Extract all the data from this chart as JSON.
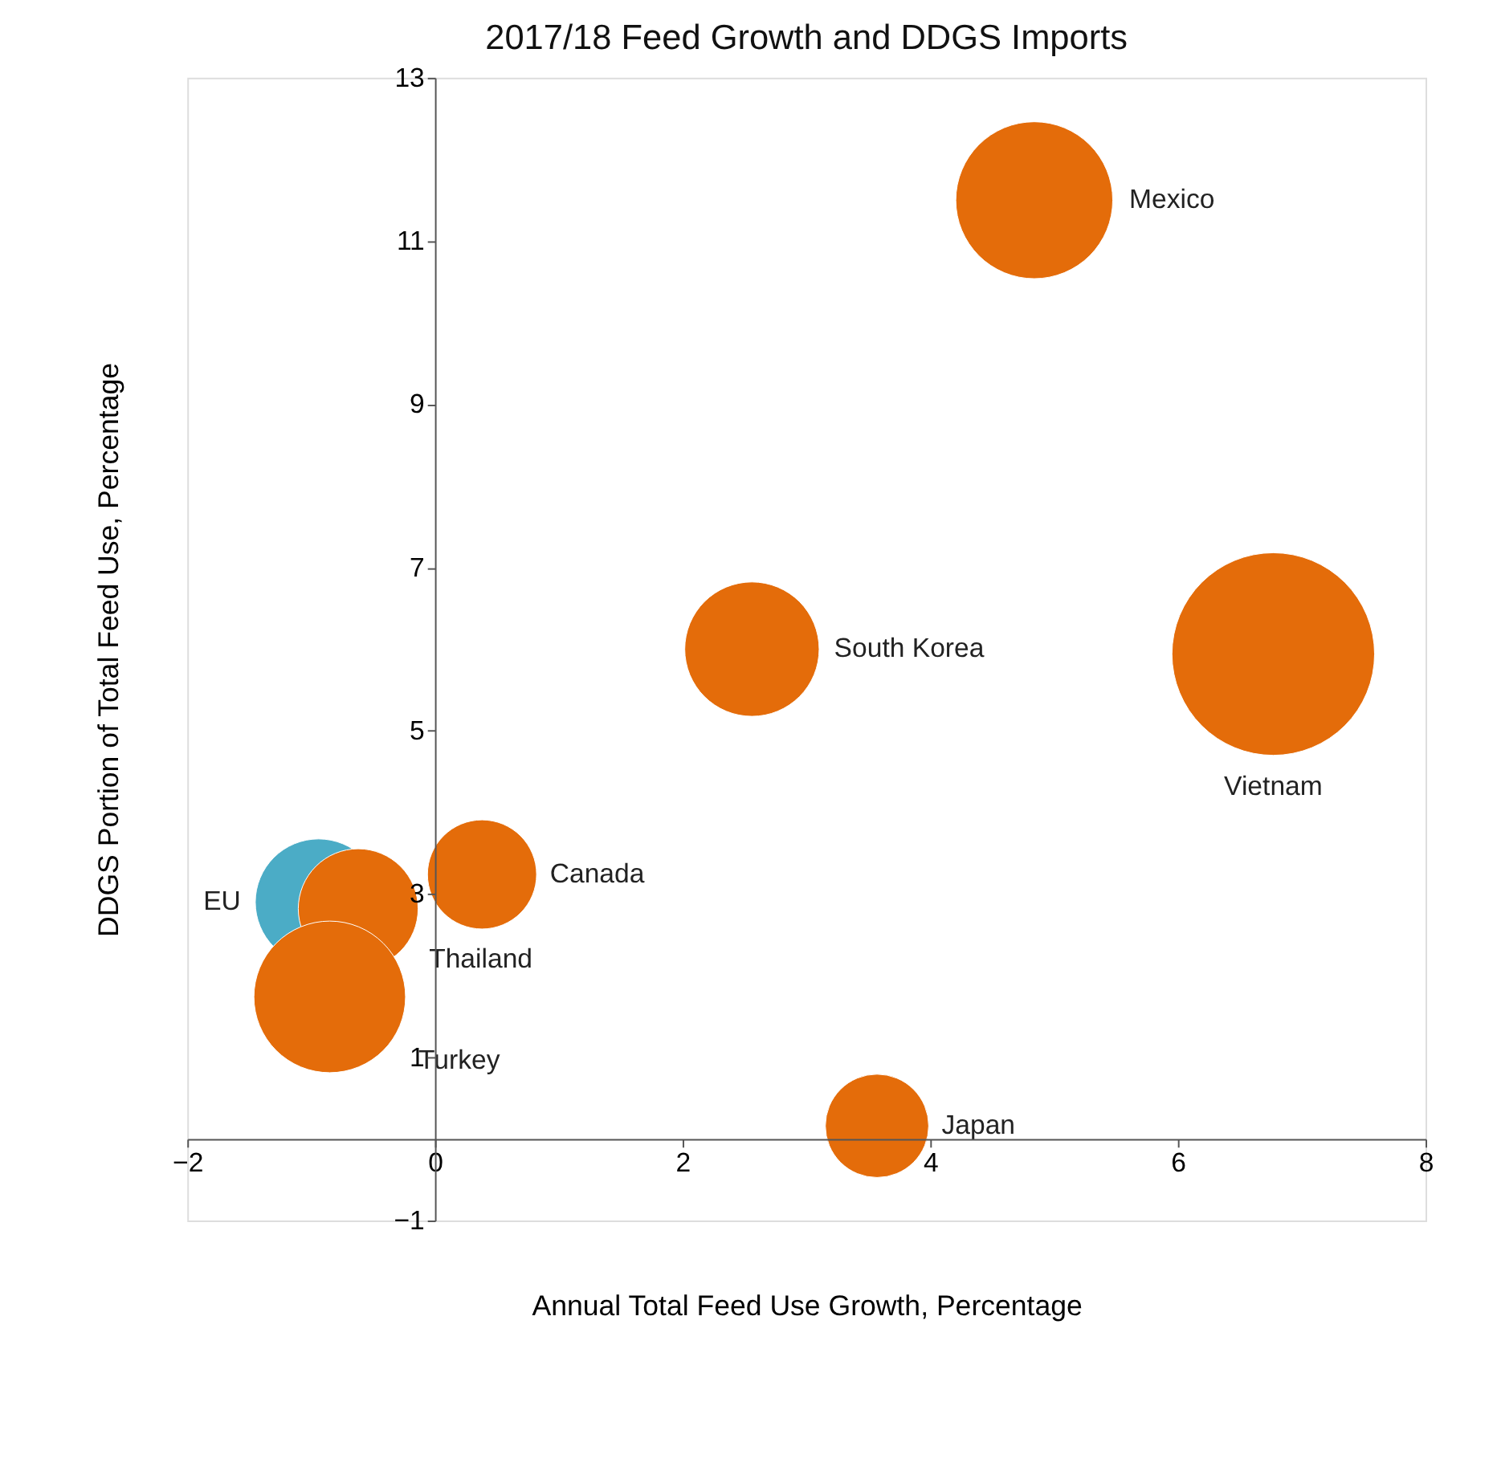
{
  "chart_data": {
    "type": "bubble",
    "title": "2017/18 Feed Growth and  DDGS Imports",
    "xlabel": "Annual Total Feed Use Growth, Percentage",
    "ylabel": "DDGS Portion of Total Feed Use, Percentage",
    "series": [
      {
        "name": "EU",
        "color": "#4bacc6",
        "x": [
          -0.94
        ],
        "values": [
          2.9
        ],
        "sizes": [
          0.39
        ]
      },
      {
        "name": "Canada",
        "color": "#e46c0a",
        "x": [
          0.38
        ],
        "values": [
          3.24
        ],
        "sizes": [
          0.29
        ]
      },
      {
        "name": "Thailand",
        "color": "#e46c0a",
        "x": [
          -0.62
        ],
        "values": [
          2.82
        ],
        "sizes": [
          0.35
        ]
      },
      {
        "name": "Turkey",
        "color": "#e46c0a",
        "x": [
          -0.85
        ],
        "values": [
          1.74
        ],
        "sizes": [
          0.56
        ]
      },
      {
        "name": "Mexico",
        "color": "#e46c0a",
        "x": [
          4.84
        ],
        "values": [
          11.5
        ],
        "sizes": [
          0.6
        ]
      },
      {
        "name": "Vietnam",
        "color": "#e46c0a",
        "x": [
          6.77
        ],
        "values": [
          5.94
        ],
        "sizes": [
          1
        ]
      },
      {
        "name": "South Korea",
        "color": "#e46c0a",
        "x": [
          2.56
        ],
        "values": [
          6.0
        ],
        "sizes": [
          0.44
        ]
      },
      {
        "name": "Japan",
        "color": "#e46c0a",
        "x": [
          3.57
        ],
        "values": [
          0.16
        ],
        "sizes": [
          0.26
        ]
      }
    ],
    "xlim": [
      -2,
      8
    ],
    "xticks": [
      -2,
      0,
      2,
      4,
      6,
      8
    ],
    "ylim": [
      -1,
      13
    ],
    "yticks": [
      -1,
      1,
      3,
      5,
      7,
      9,
      11,
      13
    ],
    "grid": false,
    "legend": false
  }
}
